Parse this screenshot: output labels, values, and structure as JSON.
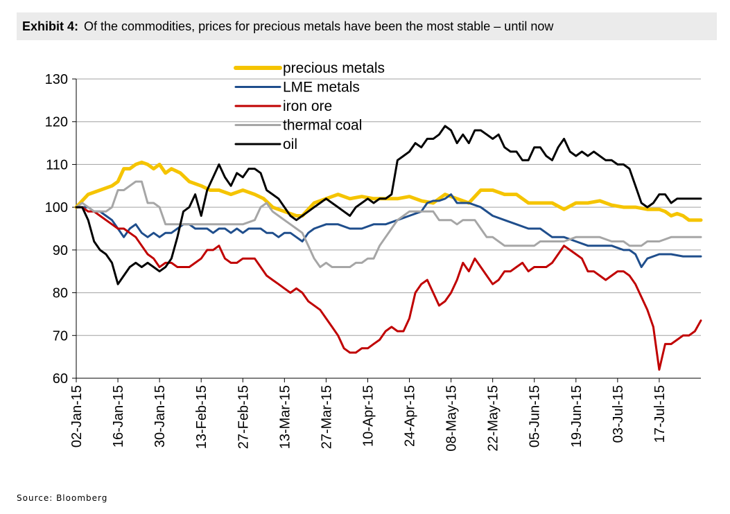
{
  "header": {
    "exhibit_label": "Exhibit 4:",
    "title": "Of the commodities, prices for precious metals have been the most stable – until now"
  },
  "source": "Source: Bloomberg",
  "chart_data": {
    "type": "line",
    "title": "Of the commodities, prices for precious metals have been the most stable – until now",
    "xlabel": "",
    "ylabel": "",
    "ylim": [
      60,
      130
    ],
    "yticks": [
      60,
      70,
      80,
      90,
      100,
      110,
      120,
      130
    ],
    "grid": true,
    "legend_position": "top-center",
    "x_range_days": [
      0,
      210
    ],
    "xticks": [
      {
        "day": 0,
        "label": "02-Jan-15"
      },
      {
        "day": 14,
        "label": "16-Jan-15"
      },
      {
        "day": 28,
        "label": "30-Jan-15"
      },
      {
        "day": 42,
        "label": "13-Feb-15"
      },
      {
        "day": 56,
        "label": "27-Feb-15"
      },
      {
        "day": 70,
        "label": "13-Mar-15"
      },
      {
        "day": 84,
        "label": "27-Mar-15"
      },
      {
        "day": 98,
        "label": "10-Apr-15"
      },
      {
        "day": 112,
        "label": "24-Apr-15"
      },
      {
        "day": 126,
        "label": "08-May-15"
      },
      {
        "day": 140,
        "label": "22-May-15"
      },
      {
        "day": 154,
        "label": "05-Jun-15"
      },
      {
        "day": 168,
        "label": "19-Jun-15"
      },
      {
        "day": 182,
        "label": "03-Jul-15"
      },
      {
        "day": 196,
        "label": "17-Jul-15"
      }
    ],
    "series": [
      {
        "name": "precious metals",
        "color": "#f5c400",
        "width": 5,
        "x": [
          0,
          4,
          8,
          12,
          14,
          16,
          18,
          20,
          22,
          24,
          26,
          28,
          30,
          32,
          35,
          38,
          42,
          45,
          48,
          52,
          56,
          60,
          63,
          66,
          70,
          74,
          76,
          80,
          84,
          88,
          92,
          96,
          100,
          104,
          108,
          112,
          116,
          120,
          124,
          128,
          132,
          136,
          140,
          144,
          148,
          152,
          156,
          160,
          164,
          168,
          172,
          176,
          180,
          184,
          188,
          192,
          196,
          198,
          200,
          202,
          204,
          206,
          208,
          210
        ],
        "values": [
          100,
          103,
          104,
          105,
          106,
          109,
          109,
          110,
          110.5,
          110,
          109,
          110,
          108,
          109,
          108,
          106,
          105,
          104,
          104,
          103,
          104,
          103,
          102,
          100,
          99,
          98,
          98,
          101,
          102,
          103,
          102,
          102.5,
          102,
          102,
          102,
          102.5,
          101.5,
          101,
          103,
          102,
          101,
          104,
          104,
          103,
          103,
          101,
          101,
          101,
          99.5,
          101,
          101,
          101.5,
          100.5,
          100,
          100,
          99.5,
          99.5,
          99,
          98,
          98.5,
          98,
          97,
          97,
          97
        ]
      },
      {
        "name": "LME metals",
        "color": "#1f4e8c",
        "width": 3,
        "x": [
          0,
          2,
          4,
          6,
          8,
          10,
          12,
          14,
          16,
          18,
          20,
          22,
          24,
          26,
          28,
          30,
          32,
          34,
          36,
          38,
          40,
          42,
          44,
          46,
          48,
          50,
          52,
          54,
          56,
          58,
          60,
          62,
          64,
          66,
          68,
          70,
          72,
          74,
          76,
          78,
          80,
          84,
          88,
          92,
          96,
          100,
          104,
          108,
          112,
          116,
          118,
          120,
          122,
          124,
          126,
          128,
          132,
          136,
          140,
          144,
          148,
          152,
          156,
          160,
          164,
          168,
          172,
          176,
          180,
          184,
          186,
          188,
          190,
          192,
          196,
          200,
          204,
          208,
          210
        ],
        "values": [
          100,
          100,
          100,
          99,
          99,
          98,
          97,
          95,
          93,
          95,
          96,
          94,
          93,
          94,
          93,
          94,
          94,
          95,
          96,
          96,
          95,
          95,
          95,
          94,
          95,
          95,
          94,
          95,
          94,
          95,
          95,
          95,
          94,
          94,
          93,
          94,
          94,
          93,
          92,
          94,
          95,
          96,
          96,
          95,
          95,
          96,
          96,
          97,
          98,
          99,
          101,
          101.5,
          101.5,
          102,
          103,
          101,
          101,
          100,
          98,
          97,
          96,
          95,
          95,
          93,
          93,
          92,
          91,
          91,
          91,
          90,
          90,
          89,
          86,
          88,
          89,
          89,
          88.5,
          88.5,
          88.5
        ]
      },
      {
        "name": "iron ore",
        "color": "#c00000",
        "width": 3,
        "x": [
          0,
          2,
          4,
          6,
          8,
          10,
          12,
          14,
          16,
          18,
          20,
          22,
          24,
          26,
          28,
          30,
          32,
          34,
          36,
          38,
          40,
          42,
          44,
          46,
          48,
          50,
          52,
          54,
          56,
          58,
          60,
          62,
          64,
          66,
          68,
          70,
          72,
          74,
          76,
          78,
          80,
          82,
          84,
          86,
          88,
          90,
          92,
          94,
          96,
          98,
          100,
          102,
          104,
          106,
          108,
          110,
          112,
          114,
          116,
          118,
          120,
          122,
          124,
          126,
          128,
          130,
          132,
          134,
          136,
          138,
          140,
          142,
          144,
          146,
          148,
          150,
          152,
          154,
          156,
          158,
          160,
          162,
          164,
          166,
          168,
          170,
          172,
          174,
          176,
          178,
          180,
          182,
          184,
          186,
          188,
          190,
          192,
          194,
          196,
          198,
          200,
          202,
          204,
          206,
          208,
          210
        ],
        "values": [
          100,
          100,
          99,
          99,
          98,
          97,
          96,
          95,
          95,
          94,
          93,
          91,
          89,
          88,
          86,
          87,
          87,
          86,
          86,
          86,
          87,
          88,
          90,
          90,
          91,
          88,
          87,
          87,
          88,
          88,
          88,
          86,
          84,
          83,
          82,
          81,
          80,
          81,
          80,
          78,
          77,
          76,
          74,
          72,
          70,
          67,
          66,
          66,
          67,
          67,
          68,
          69,
          71,
          72,
          71,
          71,
          74,
          80,
          82,
          83,
          80,
          77,
          78,
          80,
          83,
          87,
          85,
          88,
          86,
          84,
          82,
          83,
          85,
          85,
          86,
          87,
          85,
          86,
          86,
          86,
          87,
          89,
          91,
          90,
          89,
          88,
          85,
          85,
          84,
          83,
          84,
          85,
          85,
          84,
          82,
          79,
          76,
          72,
          62,
          68,
          68,
          69,
          70,
          70,
          71,
          73.5
        ]
      },
      {
        "name": "thermal coal",
        "color": "#a6a6a6",
        "width": 3,
        "x": [
          0,
          2,
          4,
          6,
          8,
          10,
          12,
          14,
          16,
          18,
          20,
          22,
          24,
          26,
          28,
          30,
          32,
          34,
          36,
          40,
          44,
          48,
          52,
          56,
          60,
          62,
          64,
          66,
          68,
          70,
          72,
          74,
          76,
          78,
          80,
          82,
          84,
          86,
          88,
          90,
          92,
          94,
          96,
          98,
          100,
          102,
          104,
          106,
          108,
          110,
          112,
          114,
          116,
          118,
          120,
          122,
          124,
          126,
          128,
          130,
          132,
          134,
          136,
          138,
          140,
          142,
          144,
          146,
          148,
          150,
          152,
          154,
          156,
          160,
          164,
          168,
          172,
          176,
          180,
          184,
          186,
          188,
          190,
          192,
          196,
          200,
          204,
          208,
          210
        ],
        "values": [
          100,
          101,
          100,
          99,
          99,
          99,
          100,
          104,
          104,
          105,
          106,
          106,
          101,
          101,
          100,
          96,
          96,
          96,
          96,
          96,
          96,
          96,
          96,
          96,
          97,
          100,
          101,
          99,
          98,
          97,
          96,
          95,
          94,
          91,
          88,
          86,
          87,
          86,
          86,
          86,
          86,
          87,
          87,
          88,
          88,
          91,
          93,
          95,
          97,
          98,
          99,
          99,
          99,
          99,
          99,
          97,
          97,
          97,
          96,
          97,
          97,
          97,
          95,
          93,
          93,
          92,
          91,
          91,
          91,
          91,
          91,
          91,
          92,
          92,
          92,
          93,
          93,
          93,
          92,
          92,
          91,
          91,
          91,
          92,
          92,
          93,
          93,
          93,
          93
        ]
      },
      {
        "name": "oil",
        "color": "#000000",
        "width": 3,
        "x": [
          0,
          2,
          4,
          6,
          8,
          10,
          12,
          14,
          16,
          18,
          20,
          22,
          24,
          26,
          28,
          30,
          32,
          34,
          36,
          38,
          40,
          42,
          44,
          46,
          48,
          50,
          52,
          54,
          56,
          58,
          60,
          62,
          64,
          66,
          68,
          70,
          72,
          74,
          76,
          78,
          80,
          82,
          84,
          86,
          88,
          90,
          92,
          94,
          96,
          98,
          100,
          102,
          104,
          106,
          108,
          110,
          112,
          114,
          116,
          118,
          120,
          122,
          124,
          126,
          128,
          130,
          132,
          134,
          136,
          138,
          140,
          142,
          144,
          146,
          148,
          150,
          152,
          154,
          156,
          158,
          160,
          162,
          164,
          166,
          168,
          170,
          172,
          174,
          176,
          178,
          180,
          182,
          184,
          186,
          188,
          190,
          192,
          194,
          196,
          198,
          200,
          202,
          204,
          206,
          208,
          210
        ],
        "values": [
          100,
          100,
          97,
          92,
          90,
          89,
          87,
          82,
          84,
          86,
          87,
          86,
          87,
          86,
          85,
          86,
          88,
          93,
          99,
          100,
          103,
          98,
          104,
          107,
          110,
          107,
          105,
          108,
          107,
          109,
          109,
          108,
          104,
          103,
          102,
          100,
          98,
          97,
          98,
          99,
          100,
          101,
          102,
          101,
          100,
          99,
          98,
          100,
          101,
          102,
          101,
          102,
          102,
          103,
          111,
          112,
          113,
          115,
          114,
          116,
          116,
          117,
          119,
          118,
          115,
          117,
          115,
          118,
          118,
          117,
          116,
          117,
          114,
          113,
          113,
          111,
          111,
          114,
          114,
          112,
          111,
          114,
          116,
          113,
          112,
          113,
          112,
          113,
          112,
          111,
          111,
          110,
          110,
          109,
          105,
          101,
          100,
          101,
          103,
          103,
          101,
          102,
          102,
          102,
          102,
          102
        ]
      }
    ]
  }
}
